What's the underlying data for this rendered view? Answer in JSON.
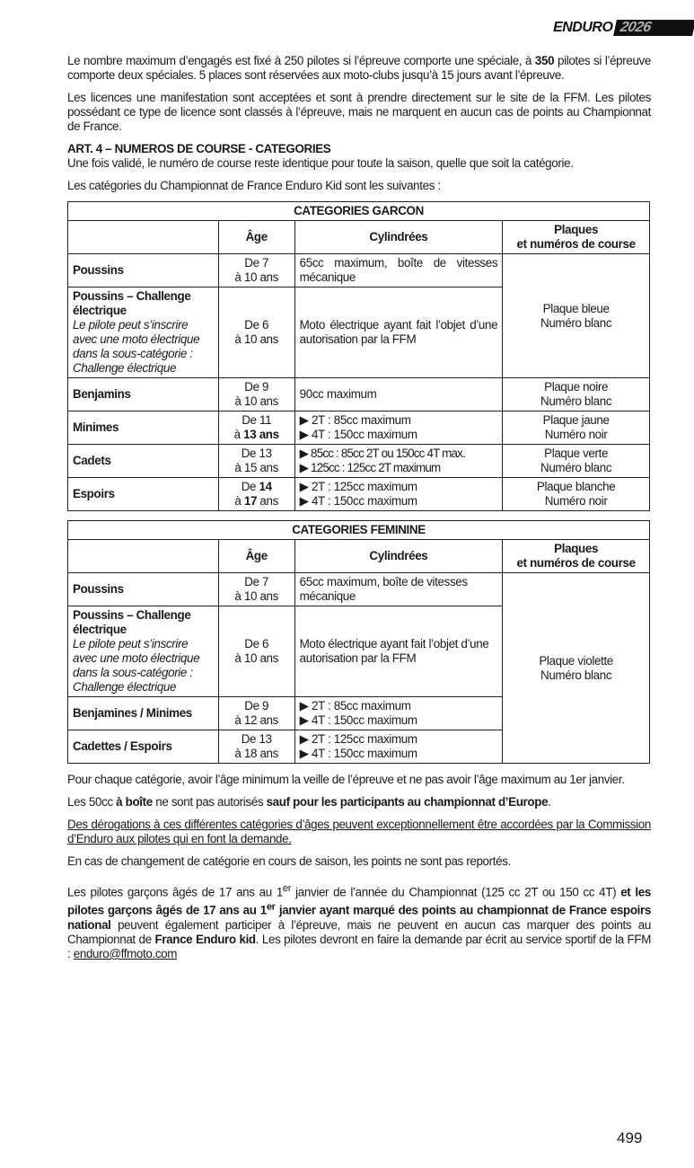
{
  "header": {
    "brand": "ENDURO",
    "year": "2026"
  },
  "paras": {
    "p1a": "Le nombre maximum d’engagés est fixé à 250 pilotes si l’épreuve comporte une spéciale, à ",
    "p1b": "350",
    "p1c": " pilotes si l’épreuve comporte deux spéciales. 5 places sont réservées aux moto-clubs jusqu’à 15 jours avant l’épreuve.",
    "p2": "Les licences une manifestation sont acceptées et sont à prendre directement sur le site de la FFM. Les pilotes possédant ce type de licence sont classés à l’épreuve, mais ne marquent en aucun cas de points au Championnat de France.",
    "art4": "ART. 4 – NUMEROS DE COURSE - CATEGORIES",
    "p3": "Une fois validé, le numéro de course reste identique pour toute la saison, quelle que soit la catégorie.",
    "p4": "Les catégories du Championnat de France Enduro Kid sont les suivantes :"
  },
  "table_common": {
    "age": "Âge",
    "cyl": "Cylindrées",
    "plaques1": "Plaques",
    "plaques2": "et numéros de course"
  },
  "garcon": {
    "title": "CATEGORIES GARCON",
    "poussins": {
      "name": "Poussins",
      "age1": "De 7",
      "age2": "à 10 ans",
      "cyl": "65cc maximum, boîte de vitesses mécanique"
    },
    "challenge": {
      "name1": "Poussins – Challenge",
      "name2": "électrique",
      "note1": "Le pilote peut s’inscrire",
      "note2": "avec une moto électrique",
      "note3": "dans la sous-catégorie :",
      "note4": "Challenge électrique",
      "age1": "De 6",
      "age2": "à 10 ans",
      "cyl": "Moto électrique ayant fait l’objet d’une autorisation par la FFM"
    },
    "plaque_poussins": {
      "l1": "Plaque bleue",
      "l2": "Numéro blanc"
    },
    "benjamins": {
      "name": "Benjamins",
      "age1": "De 9",
      "age2": "à 10 ans",
      "cyl": "90cc maximum",
      "pl1": "Plaque noire",
      "pl2": "Numéro blanc"
    },
    "minimes": {
      "name": "Minimes",
      "age1": "De 11",
      "age2a": "à ",
      "age2b": "13 ans",
      "cyl1": "▶ 2T : 85cc maximum",
      "cyl2": "▶ 4T : 150cc maximum",
      "pl1": "Plaque jaune",
      "pl2": "Numéro noir"
    },
    "cadets": {
      "name": "Cadets",
      "age1": "De 13",
      "age2": "à 15 ans",
      "cyl1": "▶ 85cc : 85cc 2T ou 150cc 4T max.",
      "cyl2": "▶ 125cc : 125cc 2T maximum",
      "pl1": "Plaque verte",
      "pl2": "Numéro blanc"
    },
    "espoirs": {
      "name": "Espoirs",
      "age1a": "De ",
      "age1b": "14",
      "age2a": "à ",
      "age2b": "17",
      "age2c": " ans",
      "cyl1": "▶ 2T : 125cc maximum",
      "cyl2": "▶ 4T : 150cc maximum",
      "pl1": "Plaque blanche",
      "pl2": "Numéro noir"
    }
  },
  "feminine": {
    "title": "CATEGORIES FEMININE",
    "poussins": {
      "name": "Poussins",
      "age1": "De 7",
      "age2": "à 10 ans",
      "cyl": "65cc maximum, boîte de vitesses mécanique"
    },
    "challenge": {
      "name1": "Poussins – Challenge",
      "name2": "électrique",
      "note1": "Le pilote peut s’inscrire",
      "note2": "avec une moto électrique",
      "note3": "dans la sous-catégorie :",
      "note4": "Challenge électrique",
      "age1": "De 6",
      "age2": "à 10 ans",
      "cyl": "Moto électrique ayant fait l’objet d’une autorisation par la FFM"
    },
    "plaque": {
      "l1": "Plaque violette",
      "l2": "Numéro blanc"
    },
    "benjamines": {
      "name": "Benjamines / Minimes",
      "age1": "De 9",
      "age2": "à 12 ans",
      "cyl1": "▶ 2T : 85cc maximum",
      "cyl2": "▶ 4T : 150cc maximum"
    },
    "cadettes": {
      "name": "Cadettes / Espoirs",
      "age1": "De 13",
      "age2": "à 18 ans",
      "cyl1": "▶ 2T : 125cc maximum",
      "cyl2": "▶ 4T : 150cc maximum"
    }
  },
  "after": {
    "p5": "Pour chaque catégorie, avoir l’âge minimum la veille de l’épreuve et ne pas avoir l’âge maximum au 1er janvier.",
    "p6a": "Les 50cc ",
    "p6b": "à boîte",
    "p6c": " ne sont pas autorisés ",
    "p6d": "sauf pour les participants au championnat d’Europe",
    "p6e": ".",
    "p7": "Des dérogations à ces différentes catégories d’âges peuvent exceptionnellement être accordées par la Commission d’Enduro aux pilotes qui en font la demande.",
    "p8": "En cas de changement de catégorie en cours de saison, les points ne sont pas reportés.",
    "p9a": "Les pilotes garçons âgés de 17 ans au 1",
    "p9sup": "er",
    "p9b": " janvier de l’année du Championnat (125 cc 2T ou 150 cc 4T) ",
    "p9c": "et les pilotes garçons âgés de 17 ans au 1",
    "p9sup2": "er",
    "p9d": " janvier ayant marqué des points au championnat de France espoirs national",
    "p9e": " peuvent également participer à l’épreuve, mais ne peuvent en aucun cas marquer des points au Championnat de ",
    "p9f": "France Enduro kid",
    "p9g": ". Les pilotes devront en faire la demande par écrit au service sportif de la FFM : ",
    "p9link": "enduro@ffmoto.com"
  },
  "page_number": "499"
}
